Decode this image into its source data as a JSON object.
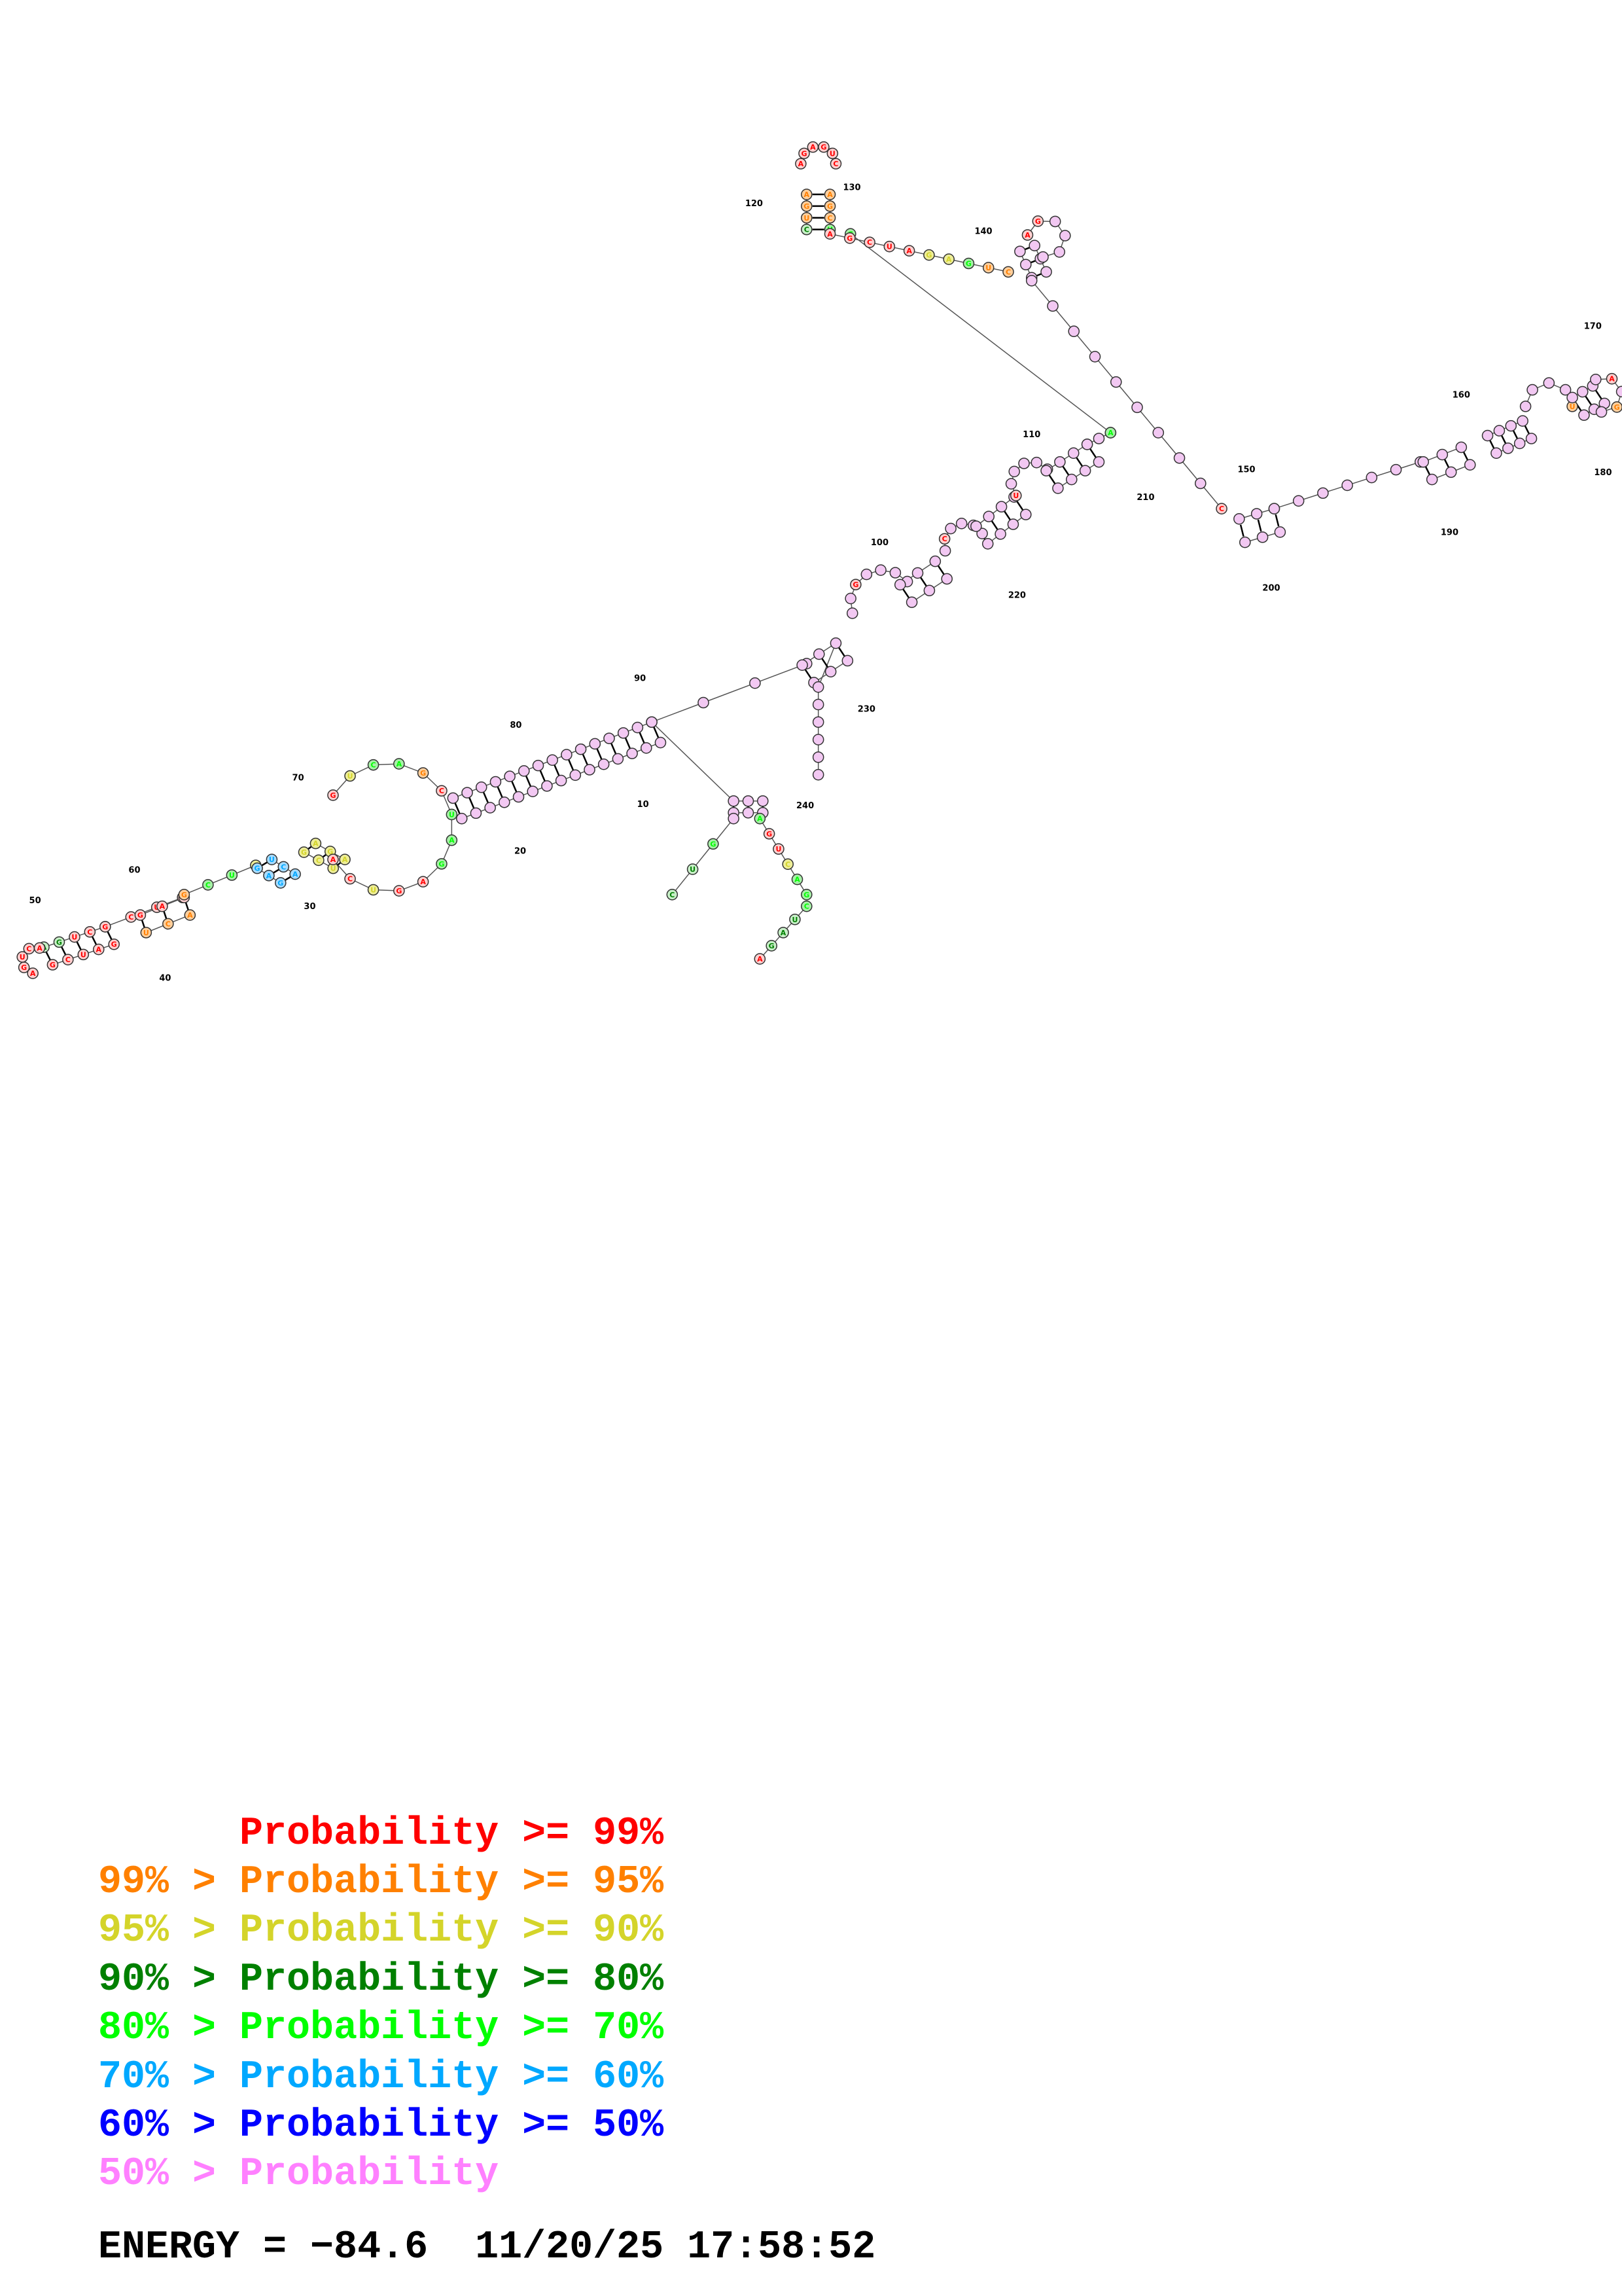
{
  "legend": [
    {
      "text": "      Probability >= 99%",
      "color": "#ff0000"
    },
    {
      "text": "99% > Probability >= 95%",
      "color": "#ff8000"
    },
    {
      "text": "95% > Probability >= 90%",
      "color": "#d4d42a"
    },
    {
      "text": "90% > Probability >= 80%",
      "color": "#008000"
    },
    {
      "text": "80% > Probability >= 70%",
      "color": "#00ff00"
    },
    {
      "text": "70% > Probability >= 60%",
      "color": "#00a8ff"
    },
    {
      "text": "60% > Probability >= 50%",
      "color": "#0000ff"
    },
    {
      "text": "50% > Probability",
      "color": "#ff80ff"
    }
  ],
  "footer": {
    "energy_text": "ENERGY = −84.6  11/20/25 17:58:52"
  },
  "structure": {
    "position_labels": [
      "10",
      "20",
      "30",
      "40",
      "50",
      "60",
      "70",
      "80",
      "90",
      "100",
      "110",
      "120",
      "130",
      "140",
      "150",
      "160",
      "170",
      "180",
      "190",
      "200",
      "210",
      "220",
      "230",
      "240"
    ],
    "base_letters": [
      "A",
      "G",
      "U",
      "C",
      "A",
      "G",
      "C",
      "U",
      "A",
      "G"
    ]
  }
}
